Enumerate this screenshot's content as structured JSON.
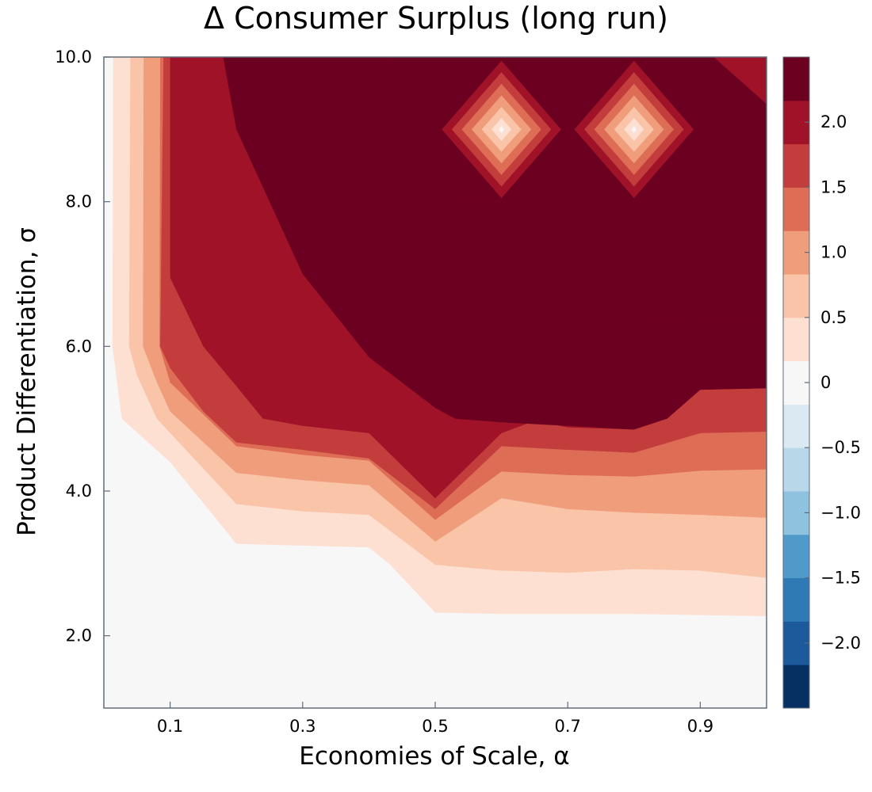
{
  "chart_data": {
    "type": "heatmap",
    "subtype": "filled-contour",
    "title": "Δ Consumer Surplus (long run)",
    "xlabel": "Economies of Scale, α",
    "ylabel": "Product Differentiation, σ",
    "xlim": [
      0.0,
      1.0
    ],
    "ylim": [
      1.0,
      10.0
    ],
    "x_ticks": [
      0.1,
      0.3,
      0.5,
      0.7,
      0.9
    ],
    "x_tick_labels": [
      "0.1",
      "0.3",
      "0.5",
      "0.7",
      "0.9"
    ],
    "y_ticks": [
      2.0,
      4.0,
      6.0,
      8.0,
      10.0
    ],
    "y_tick_labels": [
      "2.0",
      "4.0",
      "6.0",
      "8.0",
      "10.0"
    ],
    "colorbar": {
      "range": [
        -2.5,
        2.5
      ],
      "ticks": [
        2.0,
        1.5,
        1.0,
        0.5,
        0,
        -0.5,
        -1.0,
        -1.5,
        -2.0
      ],
      "tick_labels": [
        "2.0",
        "1.5",
        "1.0",
        "0.5",
        "0",
        "−0.5",
        "−1.0",
        "−1.5",
        "−2.0"
      ],
      "levels": [
        -2.5,
        -2.0,
        -1.5,
        -1.0,
        -0.5,
        0.0,
        0.5,
        1.0,
        1.5,
        2.0,
        2.5
      ],
      "band_step": 0.25,
      "colors": [
        "#053061",
        "#1d5a9c",
        "#2f79b5",
        "#4f9ac8",
        "#8ec2de",
        "#b8d8e9",
        "#dbeaf2",
        "#f7f7f7",
        "#fde0d2",
        "#f9c4a8",
        "#f09d7c",
        "#de6d56",
        "#c33d3c",
        "#a01228",
        "#6b0020"
      ]
    },
    "contours": [
      {
        "level_min": 0.0,
        "color": "#fde0d2",
        "boundary": [
          [
            0.014,
            10.0
          ],
          [
            0.013,
            6.0
          ],
          [
            0.027,
            5.0
          ],
          [
            0.1,
            4.4
          ],
          [
            0.2,
            3.27
          ],
          [
            0.4,
            3.22
          ],
          [
            0.43,
            3.0
          ],
          [
            0.5,
            2.32
          ],
          [
            0.6,
            2.3
          ],
          [
            0.8,
            2.3
          ],
          [
            1.0,
            2.27
          ]
        ]
      },
      {
        "level_min": 0.25,
        "color": "#f9c4a8",
        "boundary": [
          [
            0.04,
            10.0
          ],
          [
            0.038,
            6.0
          ],
          [
            0.05,
            5.6
          ],
          [
            0.08,
            5.0
          ],
          [
            0.2,
            3.82
          ],
          [
            0.3,
            3.72
          ],
          [
            0.4,
            3.67
          ],
          [
            0.5,
            2.98
          ],
          [
            0.6,
            2.9
          ],
          [
            0.7,
            2.87
          ],
          [
            0.8,
            2.92
          ],
          [
            0.9,
            2.9
          ],
          [
            1.0,
            2.8
          ]
        ]
      },
      {
        "level_min": 0.5,
        "color": "#f09d7c",
        "boundary": [
          [
            0.06,
            10.0
          ],
          [
            0.059,
            6.0
          ],
          [
            0.08,
            5.5
          ],
          [
            0.1,
            5.1
          ],
          [
            0.2,
            4.25
          ],
          [
            0.3,
            4.15
          ],
          [
            0.4,
            4.08
          ],
          [
            0.5,
            3.3
          ],
          [
            0.6,
            3.9
          ],
          [
            0.7,
            3.75
          ],
          [
            0.8,
            3.7
          ],
          [
            0.9,
            3.67
          ],
          [
            1.0,
            3.63
          ]
        ]
      },
      {
        "level_min": 0.75,
        "color": "#de6d56",
        "boundary": [
          [
            0.085,
            10.0
          ],
          [
            0.084,
            6.0
          ],
          [
            0.1,
            5.5
          ],
          [
            0.2,
            4.62
          ],
          [
            0.3,
            4.5
          ],
          [
            0.4,
            4.42
          ],
          [
            0.5,
            3.6
          ],
          [
            0.6,
            4.27
          ],
          [
            0.7,
            4.22
          ],
          [
            0.8,
            4.2
          ],
          [
            0.9,
            4.28
          ],
          [
            1.0,
            4.3
          ]
        ]
      },
      {
        "level_min": 1.0,
        "color": "#c33d3c",
        "boundary": [
          [
            0.09,
            10.0
          ],
          [
            0.085,
            6.0
          ],
          [
            0.1,
            5.7
          ],
          [
            0.15,
            5.1
          ],
          [
            0.2,
            4.67
          ],
          [
            0.3,
            4.57
          ],
          [
            0.4,
            4.45
          ],
          [
            0.5,
            3.75
          ],
          [
            0.6,
            4.62
          ],
          [
            0.7,
            4.57
          ],
          [
            0.8,
            4.53
          ],
          [
            0.9,
            4.8
          ],
          [
            1.0,
            4.82
          ]
        ]
      },
      {
        "level_min": 1.25,
        "color": "#a01228",
        "boundary": [
          [
            0.1,
            10.0
          ],
          [
            0.1,
            6.95
          ],
          [
            0.15,
            6.0
          ],
          [
            0.2,
            5.45
          ],
          [
            0.24,
            5.0
          ],
          [
            0.3,
            4.9
          ],
          [
            0.4,
            4.8
          ],
          [
            0.5,
            3.9
          ],
          [
            0.6,
            4.8
          ],
          [
            0.65,
            4.97
          ],
          [
            0.7,
            4.88
          ],
          [
            0.8,
            4.85
          ],
          [
            0.9,
            5.4
          ],
          [
            1.0,
            5.42
          ]
        ]
      },
      {
        "level_min": 1.5,
        "color": "#6b0020",
        "boundary": [
          [
            0.18,
            10.0
          ],
          [
            0.2,
            9.0
          ],
          [
            0.25,
            8.0
          ],
          [
            0.3,
            7.0
          ],
          [
            0.4,
            5.85
          ],
          [
            0.5,
            5.15
          ],
          [
            0.53,
            5.0
          ],
          [
            0.6,
            4.95
          ],
          [
            0.7,
            4.9
          ],
          [
            0.8,
            4.85
          ],
          [
            0.85,
            5.0
          ],
          [
            0.9,
            5.4
          ],
          [
            1.0,
            5.42
          ]
        ]
      },
      {
        "level_min": 2.0,
        "color": "#a01228",
        "boundary": [
          [
            0.43,
            10.0
          ],
          [
            0.46,
            9.0
          ],
          [
            0.5,
            8.4
          ],
          [
            0.5,
            9.0
          ],
          [
            0.57,
            9.0
          ],
          [
            0.53,
            8.0
          ],
          [
            0.6,
            8.0
          ],
          [
            0.65,
            7.3
          ],
          [
            0.7,
            6.75
          ],
          [
            0.8,
            6.4
          ],
          [
            0.9,
            6.35
          ],
          [
            1.0,
            6.35
          ]
        ]
      },
      {
        "level_min": 2.25,
        "color": "#6b0020",
        "boundary": [
          [
            0.43,
            10.0
          ],
          [
            0.46,
            9.0
          ],
          [
            0.5,
            8.4
          ],
          [
            0.5,
            9.0
          ],
          [
            0.57,
            9.0
          ],
          [
            0.53,
            8.0
          ],
          [
            0.6,
            8.0
          ],
          [
            0.65,
            7.3
          ],
          [
            0.7,
            6.75
          ],
          [
            0.8,
            6.4
          ],
          [
            0.9,
            6.35
          ],
          [
            1.0,
            6.35
          ]
        ]
      }
    ],
    "upper_right_corner": [
      {
        "level_min": 2.0,
        "color": "#c33d3c",
        "boundary": [
          [
            0.96,
            10.0
          ],
          [
            1.0,
            9.6
          ]
        ]
      },
      {
        "level_min": 1.75,
        "color": "#a01228",
        "boundary": [
          [
            0.92,
            10.0
          ],
          [
            1.0,
            9.35
          ]
        ]
      }
    ],
    "local_minima": [
      {
        "x": 0.6,
        "y": 9.0,
        "value_center": 0.0
      },
      {
        "x": 0.8,
        "y": 9.0,
        "value_center": 0.0
      }
    ],
    "minimum_rings": {
      "colors": [
        "#a01228",
        "#c33d3c",
        "#de6d56",
        "#f09d7c",
        "#f9c4a8",
        "#fde0d2",
        "#f7f7f7"
      ],
      "half_widths_x": [
        0.09,
        0.075,
        0.06,
        0.045,
        0.03,
        0.015,
        0.004
      ],
      "half_heights_y": [
        0.95,
        0.79,
        0.63,
        0.47,
        0.31,
        0.16,
        0.05
      ]
    },
    "background_color": "#f7f7f7",
    "grid": false,
    "legend": "colorbar-right"
  }
}
